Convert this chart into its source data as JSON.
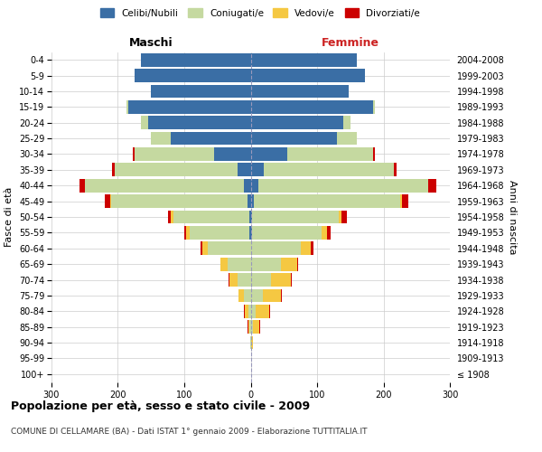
{
  "age_groups": [
    "100+",
    "95-99",
    "90-94",
    "85-89",
    "80-84",
    "75-79",
    "70-74",
    "65-69",
    "60-64",
    "55-59",
    "50-54",
    "45-49",
    "40-44",
    "35-39",
    "30-34",
    "25-29",
    "20-24",
    "15-19",
    "10-14",
    "5-9",
    "0-4"
  ],
  "birth_years": [
    "≤ 1908",
    "1909-1913",
    "1914-1918",
    "1919-1923",
    "1924-1928",
    "1929-1933",
    "1934-1938",
    "1939-1943",
    "1944-1948",
    "1949-1953",
    "1954-1958",
    "1959-1963",
    "1964-1968",
    "1969-1973",
    "1974-1978",
    "1979-1983",
    "1984-1988",
    "1989-1993",
    "1994-1998",
    "1999-2003",
    "2004-2008"
  ],
  "colors": {
    "celibi": "#3a6ea5",
    "coniugati": "#c5d9a0",
    "vedovi": "#f5c842",
    "divorziati": "#cc0000"
  },
  "male": {
    "celibi": [
      0,
      0,
      0,
      0,
      0,
      0,
      0,
      0,
      0,
      2,
      2,
      5,
      10,
      20,
      55,
      120,
      155,
      185,
      150,
      175,
      165
    ],
    "coniugati": [
      0,
      0,
      1,
      2,
      4,
      10,
      20,
      35,
      65,
      90,
      115,
      205,
      240,
      185,
      120,
      30,
      10,
      2,
      0,
      0,
      0
    ],
    "vedovi": [
      0,
      0,
      0,
      2,
      5,
      8,
      12,
      10,
      8,
      5,
      3,
      2,
      0,
      0,
      0,
      0,
      0,
      0,
      0,
      0,
      0
    ],
    "divorziati": [
      0,
      0,
      0,
      1,
      1,
      1,
      1,
      1,
      2,
      3,
      5,
      8,
      8,
      4,
      2,
      0,
      0,
      0,
      0,
      0,
      0
    ]
  },
  "female": {
    "celibi": [
      0,
      0,
      0,
      0,
      0,
      0,
      0,
      0,
      0,
      2,
      2,
      5,
      12,
      20,
      55,
      130,
      140,
      185,
      148,
      172,
      160
    ],
    "coniugati": [
      0,
      0,
      1,
      3,
      8,
      18,
      30,
      45,
      75,
      105,
      130,
      220,
      255,
      195,
      130,
      30,
      10,
      2,
      0,
      0,
      0
    ],
    "vedovi": [
      0,
      1,
      3,
      10,
      20,
      28,
      30,
      25,
      15,
      8,
      5,
      3,
      1,
      0,
      0,
      0,
      0,
      0,
      0,
      0,
      0
    ],
    "divorziati": [
      0,
      0,
      0,
      1,
      1,
      1,
      2,
      2,
      5,
      5,
      8,
      10,
      12,
      5,
      2,
      0,
      0,
      0,
      0,
      0,
      0
    ]
  },
  "title": "Popolazione per età, sesso e stato civile - 2009",
  "subtitle": "COMUNE DI CELLAMARE (BA) - Dati ISTAT 1° gennaio 2009 - Elaborazione TUTTITALIA.IT",
  "xlabel_left": "Maschi",
  "xlabel_right": "Femmine",
  "ylabel_left": "Fasce di età",
  "ylabel_right": "Anni di nascita",
  "xlim": 300,
  "legend_labels": [
    "Celibi/Nubili",
    "Coniugati/e",
    "Vedovi/e",
    "Divorziati/e"
  ],
  "bg_color": "#ffffff",
  "grid_color": "#cccccc"
}
